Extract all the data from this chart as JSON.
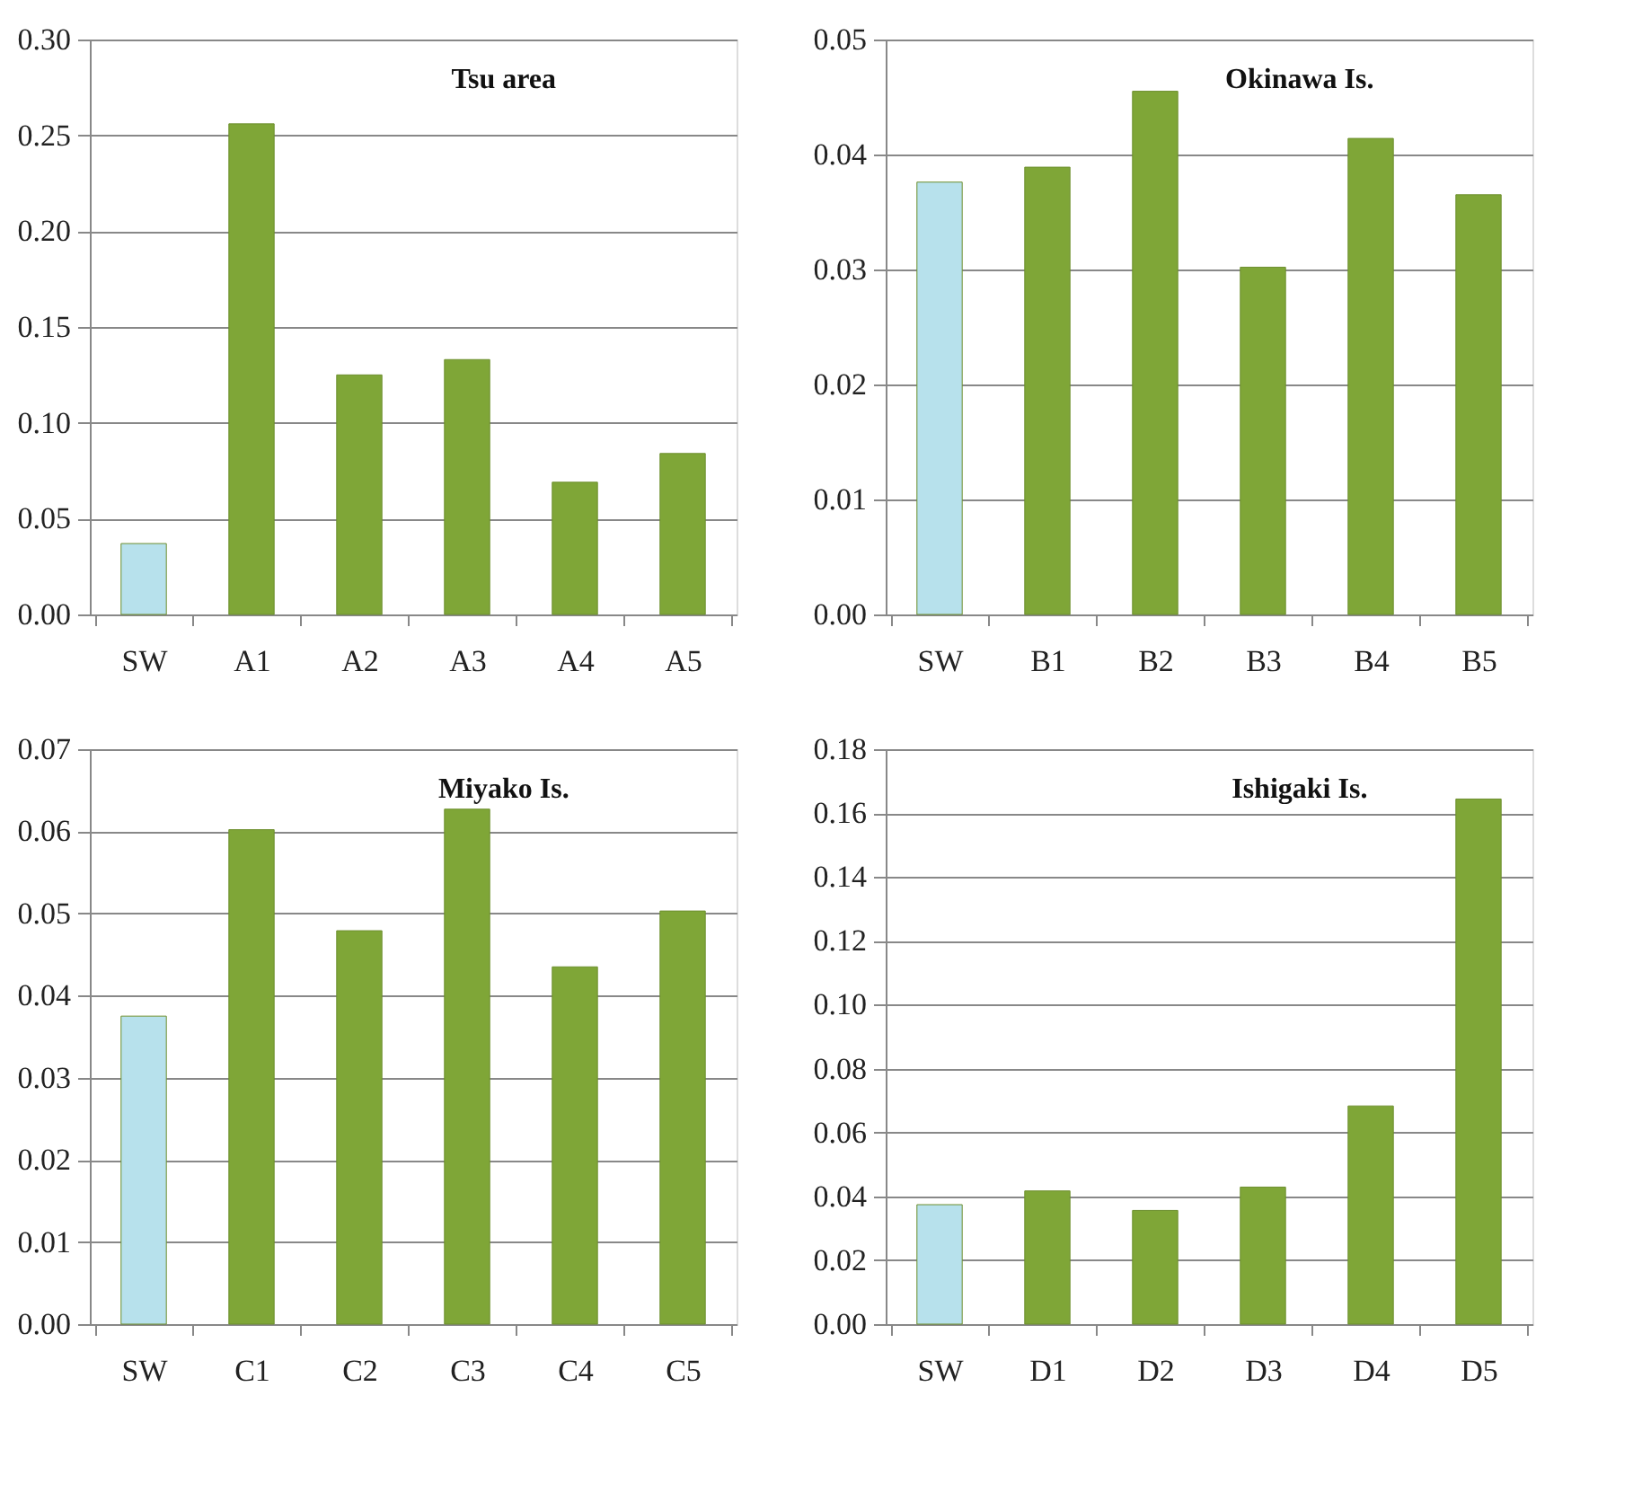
{
  "chart_data": [
    {
      "type": "bar",
      "title": "Tsu area",
      "categories": [
        "SW",
        "A1",
        "A2",
        "A3",
        "A4",
        "A5"
      ],
      "values": [
        0.037,
        0.256,
        0.125,
        0.133,
        0.069,
        0.084
      ],
      "colors": [
        "#b7e1ec",
        "#7fa637",
        "#7fa637",
        "#7fa637",
        "#7fa637",
        "#7fa637"
      ],
      "ylim": [
        0,
        0.3
      ],
      "yticks": [
        {
          "value": 0,
          "label": "0.00"
        },
        0.05,
        {
          "value": 0.1,
          "label": "0.10"
        },
        0.15,
        {
          "value": 0.2,
          "label": "0.20"
        },
        0.25,
        {
          "value": 0.3,
          "label": "0.30"
        }
      ],
      "grid": "y"
    },
    {
      "type": "bar",
      "title": "Okinawa Is.",
      "categories": [
        "SW",
        "B1",
        "B2",
        "B3",
        "B4",
        "B5"
      ],
      "values": [
        0.0376,
        0.0389,
        0.0455,
        0.0302,
        0.0414,
        0.0365
      ],
      "colors": [
        "#b7e1ec",
        "#7fa637",
        "#7fa637",
        "#7fa637",
        "#7fa637",
        "#7fa637"
      ],
      "ylim": [
        0,
        0.05
      ],
      "yticks": [
        {
          "value": 0,
          "label": "0.00"
        },
        0.01,
        0.02,
        0.03,
        0.04,
        0.05
      ],
      "grid": "y"
    },
    {
      "type": "bar",
      "title": "Miyako Is.",
      "categories": [
        "SW",
        "C1",
        "C2",
        "C3",
        "C4",
        "C5"
      ],
      "values": [
        0.0375,
        0.0602,
        0.0479,
        0.0627,
        0.0435,
        0.0503
      ],
      "colors": [
        "#b7e1ec",
        "#7fa637",
        "#7fa637",
        "#7fa637",
        "#7fa637",
        "#7fa637"
      ],
      "ylim": [
        0,
        0.07
      ],
      "yticks": [
        {
          "value": 0,
          "label": "0.00"
        },
        0.01,
        0.02,
        0.03,
        0.04,
        0.05,
        0.06,
        0.07
      ],
      "grid": "y"
    },
    {
      "type": "bar",
      "title": "Ishigaki Is.",
      "categories": [
        "SW",
        "D1",
        "D2",
        "D3",
        "D4",
        "D5"
      ],
      "values": [
        0.0374,
        0.0417,
        0.0356,
        0.0429,
        0.0683,
        0.1644
      ],
      "colors": [
        "#b7e1ec",
        "#7fa637",
        "#7fa637",
        "#7fa637",
        "#7fa637",
        "#7fa637"
      ],
      "ylim": [
        0,
        0.18
      ],
      "yticks": [
        {
          "value": 0,
          "label": "0.00"
        },
        0.02,
        0.04,
        0.06,
        0.08,
        {
          "value": 0.1,
          "label": "0.10"
        },
        0.12,
        0.14,
        0.16,
        0.18
      ],
      "grid": "y"
    }
  ]
}
